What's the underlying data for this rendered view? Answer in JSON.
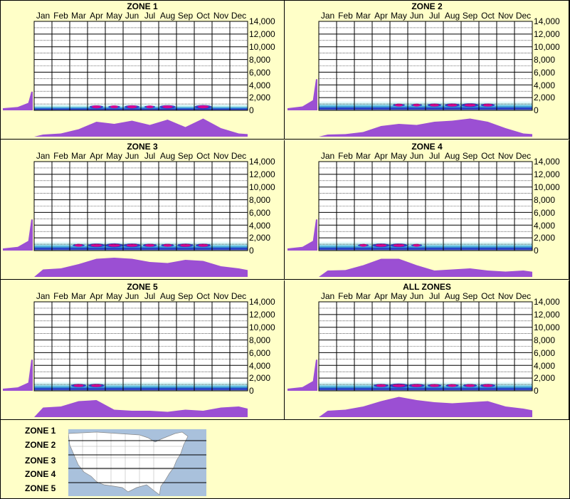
{
  "chart_data": [
    {
      "type": "heatmap",
      "title": "ZONE 1",
      "months": [
        "Jan",
        "Feb",
        "Mar",
        "Apr",
        "May",
        "Jun",
        "Jul",
        "Aug",
        "Sep",
        "Oct",
        "Nov",
        "Dec"
      ],
      "yticks": [
        "14,000",
        "12,000",
        "10,000",
        "8,000",
        "6,000",
        "4,000",
        "2,000",
        "0"
      ],
      "ylim": [
        0,
        14000
      ],
      "bottom_profile": [
        0.1,
        0.15,
        0.35,
        0.7,
        0.6,
        0.75,
        0.55,
        0.8,
        0.45,
        0.85,
        0.4,
        0.15
      ],
      "left_profile": [
        0.05,
        0.12,
        0.18,
        0.6
      ],
      "band_max": 1000
    },
    {
      "type": "heatmap",
      "title": "ZONE 2",
      "months": [
        "Jan",
        "Feb",
        "Mar",
        "Apr",
        "May",
        "Jun",
        "Jul",
        "Aug",
        "Sep",
        "Oct",
        "Nov",
        "Dec"
      ],
      "yticks": [
        "14,000",
        "12,000",
        "10,000",
        "8,000",
        "6,000",
        "4,000",
        "2,000",
        "0"
      ],
      "ylim": [
        0,
        14000
      ],
      "bottom_profile": [
        0.1,
        0.12,
        0.22,
        0.5,
        0.6,
        0.55,
        0.7,
        0.75,
        0.85,
        0.7,
        0.4,
        0.15
      ],
      "left_profile": [
        0.05,
        0.25,
        0.45,
        1.0
      ],
      "band_max": 1500
    },
    {
      "type": "heatmap",
      "title": "ZONE 3",
      "months": [
        "Jan",
        "Feb",
        "Mar",
        "Apr",
        "May",
        "Jun",
        "Jul",
        "Aug",
        "Sep",
        "Oct",
        "Nov",
        "Dec"
      ],
      "yticks": [
        "14,000",
        "12,000",
        "10,000",
        "8,000",
        "6,000",
        "4,000",
        "2,000",
        "0"
      ],
      "ylim": [
        0,
        14000
      ],
      "bottom_profile": [
        0.35,
        0.4,
        0.6,
        0.85,
        0.9,
        0.85,
        0.7,
        0.65,
        0.8,
        0.75,
        0.5,
        0.4
      ],
      "left_profile": [
        0.05,
        0.2,
        0.4,
        1.0
      ],
      "band_max": 1500
    },
    {
      "type": "heatmap",
      "title": "ZONE 4",
      "months": [
        "Jan",
        "Feb",
        "Mar",
        "Apr",
        "May",
        "Jun",
        "Jul",
        "Aug",
        "Sep",
        "Oct",
        "Nov",
        "Dec"
      ],
      "yticks": [
        "14,000",
        "12,000",
        "10,000",
        "8,000",
        "6,000",
        "4,000",
        "2,000",
        "0"
      ],
      "ylim": [
        0,
        14000
      ],
      "bottom_profile": [
        0.3,
        0.32,
        0.55,
        0.85,
        0.85,
        0.55,
        0.3,
        0.35,
        0.4,
        0.3,
        0.25,
        0.3
      ],
      "left_profile": [
        0.05,
        0.2,
        0.4,
        1.0
      ],
      "band_max": 1500
    },
    {
      "type": "heatmap",
      "title": "ZONE 5",
      "months": [
        "Jan",
        "Feb",
        "Mar",
        "Apr",
        "May",
        "Jun",
        "Jul",
        "Aug",
        "Sep",
        "Oct",
        "Nov",
        "Dec"
      ],
      "yticks": [
        "14,000",
        "12,000",
        "10,000",
        "8,000",
        "6,000",
        "4,000",
        "2,000",
        "0"
      ],
      "ylim": [
        0,
        14000
      ],
      "bottom_profile": [
        0.45,
        0.5,
        0.75,
        0.8,
        0.35,
        0.3,
        0.3,
        0.25,
        0.35,
        0.3,
        0.45,
        0.5
      ],
      "left_profile": [
        0.05,
        0.15,
        0.25,
        1.0
      ],
      "band_max": 1500
    },
    {
      "type": "heatmap",
      "title": "ALL ZONES",
      "months": [
        "Jan",
        "Feb",
        "Mar",
        "Apr",
        "May",
        "Jun",
        "Jul",
        "Aug",
        "Sep",
        "Oct",
        "Nov",
        "Dec"
      ],
      "yticks": [
        "14,000",
        "12,000",
        "10,000",
        "8,000",
        "6,000",
        "4,000",
        "2,000",
        "0"
      ],
      "ylim": [
        0,
        14000
      ],
      "bottom_profile": [
        0.3,
        0.35,
        0.5,
        0.75,
        0.95,
        0.8,
        0.7,
        0.65,
        0.7,
        0.75,
        0.5,
        0.4
      ],
      "left_profile": [
        0.05,
        0.2,
        0.4,
        1.0
      ],
      "band_max": 1500
    }
  ],
  "legend": {
    "zones": [
      "ZONE 1",
      "ZONE 2",
      "ZONE 3",
      "ZONE 4",
      "ZONE 5"
    ]
  },
  "colors": {
    "background": "#ffffc8",
    "profile": "#9b4fd3",
    "band_light": "#bfeff0",
    "band_mid": "#3ea8d8",
    "band_dark": "#1e1ec0",
    "band_core": "#e8008a",
    "map_water": "#a9c1dc",
    "map_land": "#ffffff"
  }
}
